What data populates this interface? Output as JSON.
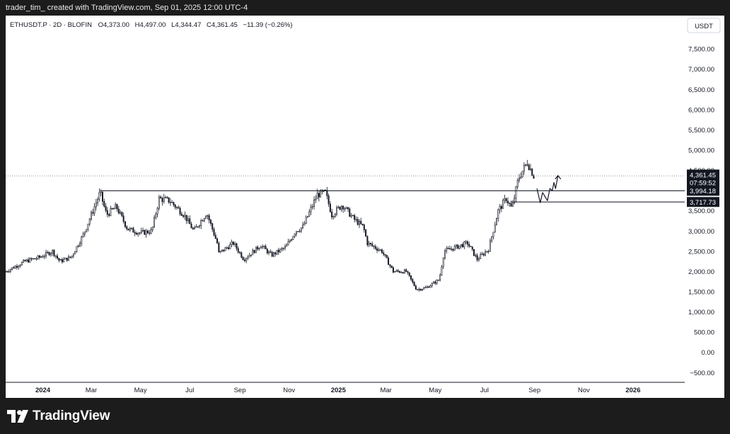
{
  "header": {
    "attribution": "trader_tim_ created with TradingView.com, Sep 01, 2025 12:00 UTC-4"
  },
  "footer": {
    "brand": "TradingView"
  },
  "chart_data": {
    "type": "candlestick",
    "symbol_line": "ETHUSDT.P · 2D · BLOFIN",
    "ohlc": {
      "o_label": "O",
      "o": "4,373.00",
      "h_label": "H",
      "h": "4,497.00",
      "l_label": "L",
      "l": "4,344.47",
      "c_label": "C",
      "c": "4,361.45",
      "change": "−11.39 (−0.26%)"
    },
    "currency": "USDT",
    "y_ticks": [
      -500,
      0,
      500,
      1000,
      1500,
      2000,
      2500,
      3000,
      3500,
      4000,
      4500,
      5000,
      5500,
      6000,
      6500,
      7000,
      7500
    ],
    "y_tick_labels": [
      "−500.00",
      "0.00",
      "500.00",
      "1,000.00",
      "1,500.00",
      "2,000.00",
      "2,500.00",
      "3,000.00",
      "3,500.00",
      "4,000.00",
      "4,500.00",
      "5,000.00",
      "5,500.00",
      "6,000.00",
      "6,500.00",
      "7,000.00",
      "7,500.00"
    ],
    "y_range": [
      -600,
      7800
    ],
    "x_labels": [
      {
        "text": "2024",
        "date": "2024-01-01",
        "bold": true
      },
      {
        "text": "Mar",
        "date": "2024-03-01",
        "bold": false
      },
      {
        "text": "May",
        "date": "2024-05-01",
        "bold": false
      },
      {
        "text": "Jul",
        "date": "2024-07-01",
        "bold": false
      },
      {
        "text": "Sep",
        "date": "2024-09-01",
        "bold": false
      },
      {
        "text": "Nov",
        "date": "2024-11-01",
        "bold": false
      },
      {
        "text": "2025",
        "date": "2025-01-01",
        "bold": true
      },
      {
        "text": "Mar",
        "date": "2025-03-01",
        "bold": false
      },
      {
        "text": "May",
        "date": "2025-05-01",
        "bold": false
      },
      {
        "text": "Jul",
        "date": "2025-07-01",
        "bold": false
      },
      {
        "text": "Sep",
        "date": "2025-09-01",
        "bold": false
      },
      {
        "text": "Nov",
        "date": "2025-11-01",
        "bold": false
      },
      {
        "text": "2026",
        "date": "2026-01-01",
        "bold": true
      }
    ],
    "x_range": [
      "2023-11-16",
      "2026-03-06"
    ],
    "price_anchors": [
      {
        "date": "2023-11-16",
        "price": 2000
      },
      {
        "date": "2023-12-10",
        "price": 2250
      },
      {
        "date": "2023-12-28",
        "price": 2350
      },
      {
        "date": "2024-01-13",
        "price": 2500
      },
      {
        "date": "2024-01-22",
        "price": 2250
      },
      {
        "date": "2024-02-05",
        "price": 2350
      },
      {
        "date": "2024-02-20",
        "price": 2900
      },
      {
        "date": "2024-03-01",
        "price": 3400
      },
      {
        "date": "2024-03-12",
        "price": 3950
      },
      {
        "date": "2024-03-20",
        "price": 3400
      },
      {
        "date": "2024-04-01",
        "price": 3600
      },
      {
        "date": "2024-04-15",
        "price": 3050
      },
      {
        "date": "2024-05-01",
        "price": 2950
      },
      {
        "date": "2024-05-15",
        "price": 3000
      },
      {
        "date": "2024-05-24",
        "price": 3800
      },
      {
        "date": "2024-06-06",
        "price": 3750
      },
      {
        "date": "2024-06-24",
        "price": 3400
      },
      {
        "date": "2024-07-06",
        "price": 3000
      },
      {
        "date": "2024-07-22",
        "price": 3450
      },
      {
        "date": "2024-08-04",
        "price": 2700
      },
      {
        "date": "2024-08-06",
        "price": 2450
      },
      {
        "date": "2024-08-24",
        "price": 2700
      },
      {
        "date": "2024-09-06",
        "price": 2300
      },
      {
        "date": "2024-09-27",
        "price": 2650
      },
      {
        "date": "2024-10-10",
        "price": 2400
      },
      {
        "date": "2024-10-28",
        "price": 2600
      },
      {
        "date": "2024-11-09",
        "price": 3000
      },
      {
        "date": "2024-11-18",
        "price": 3100
      },
      {
        "date": "2024-12-06",
        "price": 3900
      },
      {
        "date": "2024-12-16",
        "price": 3950
      },
      {
        "date": "2024-12-24",
        "price": 3400
      },
      {
        "date": "2025-01-06",
        "price": 3650
      },
      {
        "date": "2025-01-20",
        "price": 3300
      },
      {
        "date": "2025-02-01",
        "price": 3100
      },
      {
        "date": "2025-02-06",
        "price": 2700
      },
      {
        "date": "2025-02-24",
        "price": 2500
      },
      {
        "date": "2025-03-10",
        "price": 2000
      },
      {
        "date": "2025-03-26",
        "price": 2000
      },
      {
        "date": "2025-04-08",
        "price": 1550
      },
      {
        "date": "2025-04-20",
        "price": 1600
      },
      {
        "date": "2025-05-06",
        "price": 1800
      },
      {
        "date": "2025-05-12",
        "price": 2500
      },
      {
        "date": "2025-06-10",
        "price": 2700
      },
      {
        "date": "2025-06-22",
        "price": 2300
      },
      {
        "date": "2025-07-06",
        "price": 2550
      },
      {
        "date": "2025-07-18",
        "price": 3500
      },
      {
        "date": "2025-07-28",
        "price": 3800
      },
      {
        "date": "2025-08-04",
        "price": 3550
      },
      {
        "date": "2025-08-12",
        "price": 4300
      },
      {
        "date": "2025-08-23",
        "price": 4700
      },
      {
        "date": "2025-08-31",
        "price": 4361
      }
    ],
    "horizontal_levels": [
      {
        "price": 3994.18,
        "label": "3,994.18",
        "start_date": "2024-03-12"
      },
      {
        "price": 3717.73,
        "label": "3,717.73",
        "start_date": "2025-08-03"
      }
    ],
    "current_price": {
      "price": 4361.45,
      "label": "4,361.45",
      "countdown": "07:59:52"
    },
    "projection_path": [
      {
        "date": "2025-09-04",
        "price": 4050
      },
      {
        "date": "2025-09-08",
        "price": 3700
      },
      {
        "date": "2025-09-11",
        "price": 3950
      },
      {
        "date": "2025-09-14",
        "price": 3850
      },
      {
        "date": "2025-09-17",
        "price": 3750
      },
      {
        "date": "2025-09-20",
        "price": 4050
      },
      {
        "date": "2025-09-23",
        "price": 4000
      },
      {
        "date": "2025-09-25",
        "price": 4200
      },
      {
        "date": "2025-09-27",
        "price": 4050
      },
      {
        "date": "2025-09-30",
        "price": 4370
      }
    ],
    "colors": {
      "candle": "#131722",
      "level_line": "#131722",
      "price_line": "#9598a1",
      "background": "#ffffff",
      "outer_bg": "#1c1c1c"
    }
  }
}
